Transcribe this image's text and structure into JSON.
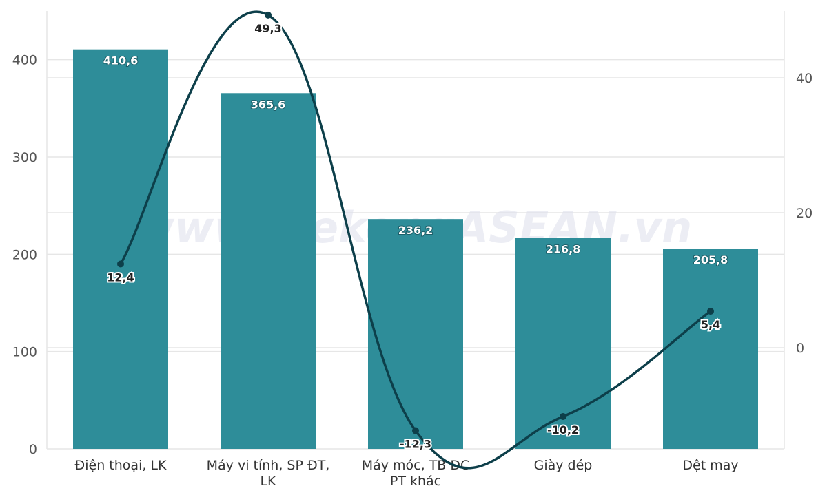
{
  "chart_data": {
    "type": "bar+line",
    "categories": [
      [
        "Điện thoại, LK"
      ],
      [
        "Máy vi tính, SP ĐT,",
        "LK"
      ],
      [
        "Máy móc, TB DC",
        "PT khác"
      ],
      [
        "Giày dép"
      ],
      [
        "Dệt may"
      ]
    ],
    "series": [
      {
        "type": "bar",
        "axis": "left",
        "color": "#2e8d99",
        "values": [
          410.6,
          365.6,
          236.2,
          216.8,
          205.8
        ],
        "labels": [
          "410,6",
          "365,6",
          "236,2",
          "216,8",
          "205,8"
        ]
      },
      {
        "type": "line",
        "axis": "right",
        "color": "#0d3f4a",
        "values": [
          12.4,
          49.3,
          -12.3,
          -10.2,
          5.4
        ],
        "labels": [
          "12,4",
          "49,3",
          "-12,3",
          "-10,2",
          "5,4"
        ]
      }
    ],
    "y_left": {
      "min": 0,
      "max": 450,
      "ticks": [
        0,
        100,
        200,
        300,
        400
      ]
    },
    "y_right": {
      "min": -15,
      "max": 50,
      "ticks": [
        0,
        20,
        40
      ]
    },
    "grid": true,
    "watermark": "www.MekongASEAN.vn"
  }
}
